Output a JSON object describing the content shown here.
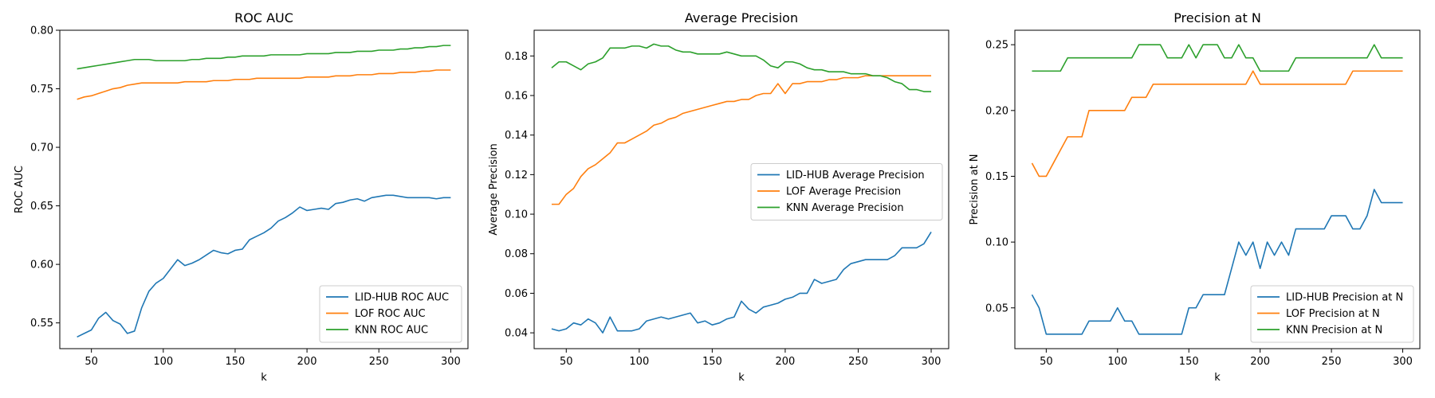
{
  "chart_data": [
    {
      "type": "line",
      "title": "ROC AUC",
      "xlabel": "k",
      "ylabel": "ROC AUC",
      "xlim": [
        28,
        312
      ],
      "ylim": [
        0.528,
        0.8
      ],
      "xticks": [
        50,
        100,
        150,
        200,
        250,
        300
      ],
      "xtick_labels": [
        "50",
        "100",
        "150",
        "200",
        "250",
        "300"
      ],
      "yticks": [
        0.55,
        0.6,
        0.65,
        0.7,
        0.75,
        0.8
      ],
      "ytick_labels": [
        "0.55",
        "0.60",
        "0.65",
        "0.70",
        "0.75",
        "0.80"
      ],
      "legend_position": "lower-right",
      "x": [
        40,
        45,
        50,
        55,
        60,
        65,
        70,
        75,
        80,
        85,
        90,
        95,
        100,
        105,
        110,
        115,
        120,
        125,
        130,
        135,
        140,
        145,
        150,
        155,
        160,
        165,
        170,
        175,
        180,
        185,
        190,
        195,
        200,
        205,
        210,
        215,
        220,
        225,
        230,
        235,
        240,
        245,
        250,
        255,
        260,
        265,
        270,
        275,
        280,
        285,
        290,
        295,
        300
      ],
      "series": [
        {
          "name": "LID-HUB ROC AUC",
          "color": "#1f77b4",
          "values": [
            0.538,
            0.541,
            0.544,
            0.554,
            0.559,
            0.552,
            0.549,
            0.541,
            0.543,
            0.563,
            0.577,
            0.584,
            0.588,
            0.596,
            0.604,
            0.599,
            0.601,
            0.604,
            0.608,
            0.612,
            0.61,
            0.609,
            0.612,
            0.613,
            0.621,
            0.624,
            0.627,
            0.631,
            0.637,
            0.64,
            0.644,
            0.649,
            0.646,
            0.647,
            0.648,
            0.647,
            0.652,
            0.653,
            0.655,
            0.656,
            0.654,
            0.657,
            0.658,
            0.659,
            0.659,
            0.658,
            0.657,
            0.657,
            0.657,
            0.657,
            0.656,
            0.657,
            0.657
          ]
        },
        {
          "name": "LOF ROC AUC",
          "color": "#ff7f0e",
          "values": [
            0.741,
            0.743,
            0.744,
            0.746,
            0.748,
            0.75,
            0.751,
            0.753,
            0.754,
            0.755,
            0.755,
            0.755,
            0.755,
            0.755,
            0.755,
            0.756,
            0.756,
            0.756,
            0.756,
            0.757,
            0.757,
            0.757,
            0.758,
            0.758,
            0.758,
            0.759,
            0.759,
            0.759,
            0.759,
            0.759,
            0.759,
            0.759,
            0.76,
            0.76,
            0.76,
            0.76,
            0.761,
            0.761,
            0.761,
            0.762,
            0.762,
            0.762,
            0.763,
            0.763,
            0.763,
            0.764,
            0.764,
            0.764,
            0.765,
            0.765,
            0.766,
            0.766,
            0.766
          ]
        },
        {
          "name": "KNN ROC AUC",
          "color": "#2ca02c",
          "values": [
            0.767,
            0.768,
            0.769,
            0.77,
            0.771,
            0.772,
            0.773,
            0.774,
            0.775,
            0.775,
            0.775,
            0.774,
            0.774,
            0.774,
            0.774,
            0.774,
            0.775,
            0.775,
            0.776,
            0.776,
            0.776,
            0.777,
            0.777,
            0.778,
            0.778,
            0.778,
            0.778,
            0.779,
            0.779,
            0.779,
            0.779,
            0.779,
            0.78,
            0.78,
            0.78,
            0.78,
            0.781,
            0.781,
            0.781,
            0.782,
            0.782,
            0.782,
            0.783,
            0.783,
            0.783,
            0.784,
            0.784,
            0.785,
            0.785,
            0.786,
            0.786,
            0.787,
            0.787
          ]
        }
      ]
    },
    {
      "type": "line",
      "title": "Average Precision",
      "xlabel": "k",
      "ylabel": "Average Precision",
      "xlim": [
        28,
        312
      ],
      "ylim": [
        0.032,
        0.193
      ],
      "xticks": [
        50,
        100,
        150,
        200,
        250,
        300
      ],
      "xtick_labels": [
        "50",
        "100",
        "150",
        "200",
        "250",
        "300"
      ],
      "yticks": [
        0.04,
        0.06,
        0.08,
        0.1,
        0.12,
        0.14,
        0.16,
        0.18
      ],
      "ytick_labels": [
        "0.04",
        "0.06",
        "0.08",
        "0.10",
        "0.12",
        "0.14",
        "0.16",
        "0.18"
      ],
      "legend_position": "center-right",
      "x": [
        40,
        45,
        50,
        55,
        60,
        65,
        70,
        75,
        80,
        85,
        90,
        95,
        100,
        105,
        110,
        115,
        120,
        125,
        130,
        135,
        140,
        145,
        150,
        155,
        160,
        165,
        170,
        175,
        180,
        185,
        190,
        195,
        200,
        205,
        210,
        215,
        220,
        225,
        230,
        235,
        240,
        245,
        250,
        255,
        260,
        265,
        270,
        275,
        280,
        285,
        290,
        295,
        300
      ],
      "series": [
        {
          "name": "LID-HUB Average Precision",
          "color": "#1f77b4",
          "values": [
            0.042,
            0.041,
            0.042,
            0.045,
            0.044,
            0.047,
            0.045,
            0.04,
            0.048,
            0.041,
            0.041,
            0.041,
            0.042,
            0.046,
            0.047,
            0.048,
            0.047,
            0.048,
            0.049,
            0.05,
            0.045,
            0.046,
            0.044,
            0.045,
            0.047,
            0.048,
            0.056,
            0.052,
            0.05,
            0.053,
            0.054,
            0.055,
            0.057,
            0.058,
            0.06,
            0.06,
            0.067,
            0.065,
            0.066,
            0.067,
            0.072,
            0.075,
            0.076,
            0.077,
            0.077,
            0.077,
            0.077,
            0.079,
            0.083,
            0.083,
            0.083,
            0.085,
            0.091
          ]
        },
        {
          "name": "LOF Average Precision",
          "color": "#ff7f0e",
          "values": [
            0.105,
            0.105,
            0.11,
            0.113,
            0.119,
            0.123,
            0.125,
            0.128,
            0.131,
            0.136,
            0.136,
            0.138,
            0.14,
            0.142,
            0.145,
            0.146,
            0.148,
            0.149,
            0.151,
            0.152,
            0.153,
            0.154,
            0.155,
            0.156,
            0.157,
            0.157,
            0.158,
            0.158,
            0.16,
            0.161,
            0.161,
            0.166,
            0.161,
            0.166,
            0.166,
            0.167,
            0.167,
            0.167,
            0.168,
            0.168,
            0.169,
            0.169,
            0.169,
            0.17,
            0.17,
            0.17,
            0.17,
            0.17,
            0.17,
            0.17,
            0.17,
            0.17,
            0.17
          ]
        },
        {
          "name": "KNN Average Precision",
          "color": "#2ca02c",
          "values": [
            0.174,
            0.177,
            0.177,
            0.175,
            0.173,
            0.176,
            0.177,
            0.179,
            0.184,
            0.184,
            0.184,
            0.185,
            0.185,
            0.184,
            0.186,
            0.185,
            0.185,
            0.183,
            0.182,
            0.182,
            0.181,
            0.181,
            0.181,
            0.181,
            0.182,
            0.181,
            0.18,
            0.18,
            0.18,
            0.178,
            0.175,
            0.174,
            0.177,
            0.177,
            0.176,
            0.174,
            0.173,
            0.173,
            0.172,
            0.172,
            0.172,
            0.171,
            0.171,
            0.171,
            0.17,
            0.17,
            0.169,
            0.167,
            0.166,
            0.163,
            0.163,
            0.162,
            0.162
          ]
        }
      ]
    },
    {
      "type": "line",
      "title": "Precision at N",
      "xlabel": "k",
      "ylabel": "Precision at N",
      "xlim": [
        28,
        312
      ],
      "ylim": [
        0.019,
        0.261
      ],
      "xticks": [
        50,
        100,
        150,
        200,
        250,
        300
      ],
      "xtick_labels": [
        "50",
        "100",
        "150",
        "200",
        "250",
        "300"
      ],
      "yticks": [
        0.05,
        0.1,
        0.15,
        0.2,
        0.25
      ],
      "ytick_labels": [
        "0.05",
        "0.10",
        "0.15",
        "0.20",
        "0.25"
      ],
      "legend_position": "lower-right",
      "x": [
        40,
        45,
        50,
        55,
        60,
        65,
        70,
        75,
        80,
        85,
        90,
        95,
        100,
        105,
        110,
        115,
        120,
        125,
        130,
        135,
        140,
        145,
        150,
        155,
        160,
        165,
        170,
        175,
        180,
        185,
        190,
        195,
        200,
        205,
        210,
        215,
        220,
        225,
        230,
        235,
        240,
        245,
        250,
        255,
        260,
        265,
        270,
        275,
        280,
        285,
        290,
        295,
        300
      ],
      "series": [
        {
          "name": "LID-HUB Precision at N",
          "color": "#1f77b4",
          "values": [
            0.06,
            0.05,
            0.03,
            0.03,
            0.03,
            0.03,
            0.03,
            0.03,
            0.04,
            0.04,
            0.04,
            0.04,
            0.05,
            0.04,
            0.04,
            0.03,
            0.03,
            0.03,
            0.03,
            0.03,
            0.03,
            0.03,
            0.05,
            0.05,
            0.06,
            0.06,
            0.06,
            0.06,
            0.08,
            0.1,
            0.09,
            0.1,
            0.08,
            0.1,
            0.09,
            0.1,
            0.09,
            0.11,
            0.11,
            0.11,
            0.11,
            0.11,
            0.12,
            0.12,
            0.12,
            0.11,
            0.11,
            0.12,
            0.14,
            0.13,
            0.13,
            0.13,
            0.13
          ]
        },
        {
          "name": "LOF Precision at N",
          "color": "#ff7f0e",
          "values": [
            0.16,
            0.15,
            0.15,
            0.16,
            0.17,
            0.18,
            0.18,
            0.18,
            0.2,
            0.2,
            0.2,
            0.2,
            0.2,
            0.2,
            0.21,
            0.21,
            0.21,
            0.22,
            0.22,
            0.22,
            0.22,
            0.22,
            0.22,
            0.22,
            0.22,
            0.22,
            0.22,
            0.22,
            0.22,
            0.22,
            0.22,
            0.23,
            0.22,
            0.22,
            0.22,
            0.22,
            0.22,
            0.22,
            0.22,
            0.22,
            0.22,
            0.22,
            0.22,
            0.22,
            0.22,
            0.23,
            0.23,
            0.23,
            0.23,
            0.23,
            0.23,
            0.23,
            0.23
          ]
        },
        {
          "name": "KNN Precision at N",
          "color": "#2ca02c",
          "values": [
            0.23,
            0.23,
            0.23,
            0.23,
            0.23,
            0.24,
            0.24,
            0.24,
            0.24,
            0.24,
            0.24,
            0.24,
            0.24,
            0.24,
            0.24,
            0.25,
            0.25,
            0.25,
            0.25,
            0.24,
            0.24,
            0.24,
            0.25,
            0.24,
            0.25,
            0.25,
            0.25,
            0.24,
            0.24,
            0.25,
            0.24,
            0.24,
            0.23,
            0.23,
            0.23,
            0.23,
            0.23,
            0.24,
            0.24,
            0.24,
            0.24,
            0.24,
            0.24,
            0.24,
            0.24,
            0.24,
            0.24,
            0.24,
            0.25,
            0.24,
            0.24,
            0.24,
            0.24
          ]
        }
      ]
    }
  ]
}
